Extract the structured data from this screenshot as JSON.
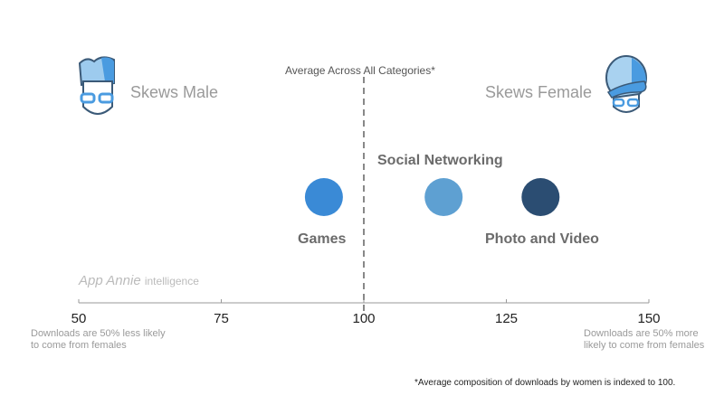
{
  "chart_data": {
    "type": "scatter",
    "title": "",
    "reference_label": "Average Across All Categories*",
    "reference_value": 100,
    "xlim": [
      50,
      150
    ],
    "xticks": [
      50,
      75,
      100,
      125,
      150
    ],
    "left_label": "Skews Male",
    "right_label": "Skews Female",
    "left_note": "Downloads are 50% less likely to come from females",
    "right_note": "Downloads are 50% more likely to come from females",
    "points": [
      {
        "name": "Games",
        "x": 93,
        "color": "#3a8ad6"
      },
      {
        "name": "Social Networking",
        "x": 114,
        "color": "#5ea0d2"
      },
      {
        "name": "Photo and Video",
        "x": 131,
        "color": "#2b4d72"
      }
    ],
    "footnote": "*Average composition of downloads by women is indexed to 100.",
    "watermark": "App Annie Intelligence"
  }
}
